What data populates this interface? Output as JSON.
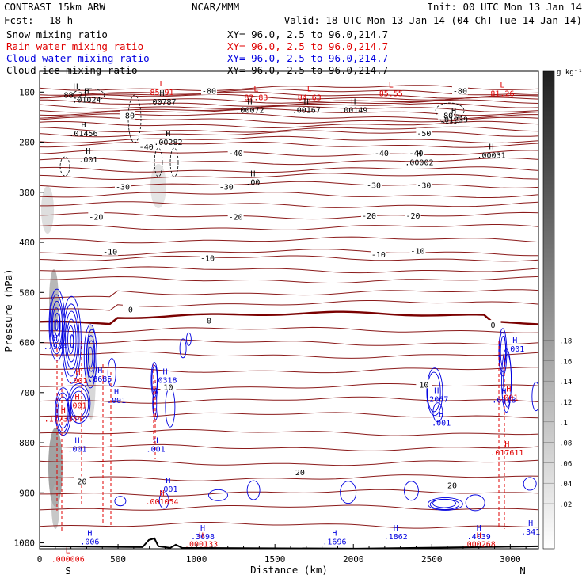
{
  "header": {
    "title": "CONTRAST 15km ARW",
    "center": "NCAR/MMM",
    "init": "Init: 00 UTC Mon 13 Jan 14",
    "fcst_label": "Fcst:",
    "fcst_value": "18 h",
    "valid": "Valid: 18 UTC Mon 13 Jan 14 (04 ChT Tue 14 Jan 14)"
  },
  "fields": [
    {
      "name": "Snow mixing ratio",
      "xy": "XY=  96.0,  2.5 to  96.0,214.7",
      "color": "#000000"
    },
    {
      "name": "Rain water mixing ratio",
      "xy": "XY=  96.0,  2.5 to  96.0,214.7",
      "color": "#e00000"
    },
    {
      "name": "Cloud water mixing ratio",
      "xy": "XY=  96.0,  2.5 to  96.0,214.7",
      "color": "#0000e0"
    },
    {
      "name": "Cloud ice mixing ratio",
      "xy": "XY=  96.0,  2.5 to  96.0,214.7",
      "color": "#000000"
    }
  ],
  "colorbar": {
    "unit": "g kg⁻¹",
    "ticks": [
      ".02",
      ".04",
      ".06",
      ".08",
      ".1",
      ".12",
      ".14",
      ".16",
      ".18"
    ]
  },
  "chart_data": {
    "type": "contour",
    "xlabel": "Distance (km)",
    "ylabel": "Pressure (hPa)",
    "xlim": [
      0,
      3180
    ],
    "ylim": [
      1030,
      60
    ],
    "xticks": [
      "0",
      "500",
      "1000",
      "1500",
      "2000",
      "2500",
      "3000"
    ],
    "xtick_values": [
      0,
      500,
      1000,
      1500,
      2000,
      2500,
      3000
    ],
    "yticks": [
      "100",
      "200",
      "300",
      "400",
      "500",
      "600",
      "700",
      "800",
      "900",
      "1000"
    ],
    "ytick_values": [
      100,
      200,
      300,
      400,
      500,
      600,
      700,
      800,
      900,
      1000
    ],
    "x_endpoints": {
      "left": "S",
      "right": "N"
    },
    "temperature_contours": [
      {
        "label": "-80",
        "p": 110
      },
      {
        "label": "-50",
        "p": 183
      },
      {
        "label": "-40",
        "p": 222
      },
      {
        "label": "-30",
        "p": 285
      },
      {
        "label": "-20",
        "p": 347
      },
      {
        "label": "-10",
        "p": 432
      },
      {
        "label": "0",
        "p": 545
      },
      {
        "label": "10",
        "p": 688
      },
      {
        "label": "20",
        "p": 870
      }
    ],
    "contour_labels": [
      {
        "text": "-80",
        "x": 1080,
        "p": 99
      },
      {
        "text": "-80",
        "x": 2680,
        "p": 99
      },
      {
        "text": "-80",
        "x": 2590,
        "p": 148
      },
      {
        "text": "-80",
        "x": 560,
        "p": 148
      },
      {
        "text": "-50",
        "x": 2450,
        "p": 183
      },
      {
        "text": "-40",
        "x": 1250,
        "p": 223
      },
      {
        "text": "-40",
        "x": 2180,
        "p": 223
      },
      {
        "text": "-40",
        "x": 2400,
        "p": 223
      },
      {
        "text": "-40",
        "x": 680,
        "p": 210
      },
      {
        "text": "-30",
        "x": 530,
        "p": 290
      },
      {
        "text": "-30",
        "x": 1190,
        "p": 290
      },
      {
        "text": "-30",
        "x": 2130,
        "p": 287
      },
      {
        "text": "-30",
        "x": 2450,
        "p": 287
      },
      {
        "text": "-20",
        "x": 360,
        "p": 350
      },
      {
        "text": "-20",
        "x": 1250,
        "p": 350
      },
      {
        "text": "-20",
        "x": 2100,
        "p": 348
      },
      {
        "text": "-20",
        "x": 2380,
        "p": 348
      },
      {
        "text": "-10",
        "x": 450,
        "p": 420
      },
      {
        "text": "-10",
        "x": 1070,
        "p": 432
      },
      {
        "text": "-10",
        "x": 2160,
        "p": 425
      },
      {
        "text": "-10",
        "x": 2410,
        "p": 418
      },
      {
        "text": "0",
        "x": 580,
        "p": 535
      },
      {
        "text": "0",
        "x": 1080,
        "p": 557
      },
      {
        "text": "0",
        "x": 2890,
        "p": 566
      },
      {
        "text": "10",
        "x": 820,
        "p": 690
      },
      {
        "text": "10",
        "x": 2450,
        "p": 685
      },
      {
        "text": "20",
        "x": 270,
        "p": 878
      },
      {
        "text": "20",
        "x": 1660,
        "p": 860
      },
      {
        "text": "20",
        "x": 2630,
        "p": 886
      }
    ],
    "maxima": [
      {
        "text": "H",
        "value": "88.21",
        "x": 230,
        "p": 108,
        "color": "#000000"
      },
      {
        "text": "H",
        "value": ".01024",
        "x": 300,
        "p": 118,
        "color": "#000000"
      },
      {
        "text": "L",
        "value": "85.91",
        "x": 780,
        "p": 103,
        "color": "#e00000"
      },
      {
        "text": "H",
        "value": ".00787",
        "x": 780,
        "p": 122,
        "color": "#000000"
      },
      {
        "text": "L",
        "value": "82.83",
        "x": 1380,
        "p": 113,
        "color": "#e00000"
      },
      {
        "text": "H",
        "value": ".00072",
        "x": 1340,
        "p": 138,
        "color": "#000000"
      },
      {
        "text": "L",
        "value": "84.63",
        "x": 1720,
        "p": 113,
        "color": "#e00000"
      },
      {
        "text": "H",
        "value": ".00167",
        "x": 1700,
        "p": 138,
        "color": "#000000"
      },
      {
        "text": "H",
        "value": ".00149",
        "x": 2000,
        "p": 138,
        "color": "#000000"
      },
      {
        "text": "L",
        "value": "85.55",
        "x": 2240,
        "p": 105,
        "color": "#e00000"
      },
      {
        "text": "L",
        "value": "81.26",
        "x": 2950,
        "p": 105,
        "color": "#e00000"
      },
      {
        "text": "H",
        "value": ".01239",
        "x": 2640,
        "p": 157,
        "color": "#000000"
      },
      {
        "text": "H",
        "value": ".01456",
        "x": 280,
        "p": 185,
        "color": "#000000"
      },
      {
        "text": "H",
        "value": ".00282",
        "x": 820,
        "p": 202,
        "color": "#000000"
      },
      {
        "text": "H",
        "value": ".001",
        "x": 310,
        "p": 237,
        "color": "#000000"
      },
      {
        "text": "H",
        "value": ".00002",
        "x": 2420,
        "p": 243,
        "color": "#000000"
      },
      {
        "text": "H",
        "value": ".00031",
        "x": 2880,
        "p": 228,
        "color": "#000000"
      },
      {
        "text": "H",
        "value": ".00",
        "x": 1360,
        "p": 282,
        "color": "#000000"
      },
      {
        "text": "H",
        "value": ".7934",
        "x": 100,
        "p": 610,
        "color": "#0000e0"
      },
      {
        "text": "H",
        "value": ".8685",
        "x": 385,
        "p": 675,
        "color": "#0000e0"
      },
      {
        "text": "H",
        "value": ".0318",
        "x": 800,
        "p": 677,
        "color": "#0000e0"
      },
      {
        "text": "H",
        "value": ".001",
        "x": 490,
        "p": 718,
        "color": "#0000e0"
      },
      {
        "text": "H",
        "value": ".001",
        "x": 240,
        "p": 815,
        "color": "#0000e0"
      },
      {
        "text": "H",
        "value": ".001",
        "x": 740,
        "p": 815,
        "color": "#0000e0"
      },
      {
        "text": "H",
        "value": ".001",
        "x": 820,
        "p": 895,
        "color": "#0000e0"
      },
      {
        "text": "H",
        "value": ".2067",
        "x": 2530,
        "p": 715,
        "color": "#0000e0"
      },
      {
        "text": "H",
        "value": ".001",
        "x": 2560,
        "p": 763,
        "color": "#0000e0"
      },
      {
        "text": "H",
        "value": ".6318",
        "x": 2960,
        "p": 717,
        "color": "#0000e0"
      },
      {
        "text": "H",
        "value": ".001",
        "x": 3030,
        "p": 615,
        "color": "#0000e0"
      },
      {
        "text": "H",
        "value": ".001",
        "x": 245,
        "p": 678,
        "color": "#e00000"
      },
      {
        "text": "H",
        "value": ".001",
        "x": 240,
        "p": 728,
        "color": "#e00000"
      },
      {
        "text": "H",
        "value": ".1773344",
        "x": 150,
        "p": 755,
        "color": "#e00000"
      },
      {
        "text": "H",
        "value": ".001054",
        "x": 780,
        "p": 920,
        "color": "#e00000"
      },
      {
        "text": "H",
        "value": ".017611",
        "x": 2980,
        "p": 822,
        "color": "#e00000"
      },
      {
        "text": "H",
        "value": ".001",
        "x": 2990,
        "p": 712,
        "color": "#e00000"
      },
      {
        "text": "H",
        "value": ".006",
        "x": 320,
        "p": 1000,
        "color": "#0000e0"
      },
      {
        "text": "L",
        "value": ".000006",
        "x": 180,
        "p": 1035,
        "color": "#e00000"
      },
      {
        "text": "H",
        "value": ".3698",
        "x": 1040,
        "p": 990,
        "color": "#0000e0"
      },
      {
        "text": "H",
        "value": ".000133",
        "x": 1030,
        "p": 1005,
        "color": "#e00000"
      },
      {
        "text": "H",
        "value": ".1696",
        "x": 1880,
        "p": 1000,
        "color": "#0000e0"
      },
      {
        "text": "H",
        "value": ".1862",
        "x": 2270,
        "p": 990,
        "color": "#0000e0"
      },
      {
        "text": "H",
        "value": ".4039",
        "x": 2800,
        "p": 990,
        "color": "#0000e0"
      },
      {
        "text": "H",
        "value": ".000268",
        "x": 2800,
        "p": 1005,
        "color": "#e00000"
      },
      {
        "text": "H",
        "value": ".341",
        "x": 3130,
        "p": 980,
        "color": "#0000e0"
      }
    ],
    "terrain_base_p": 1010
  }
}
